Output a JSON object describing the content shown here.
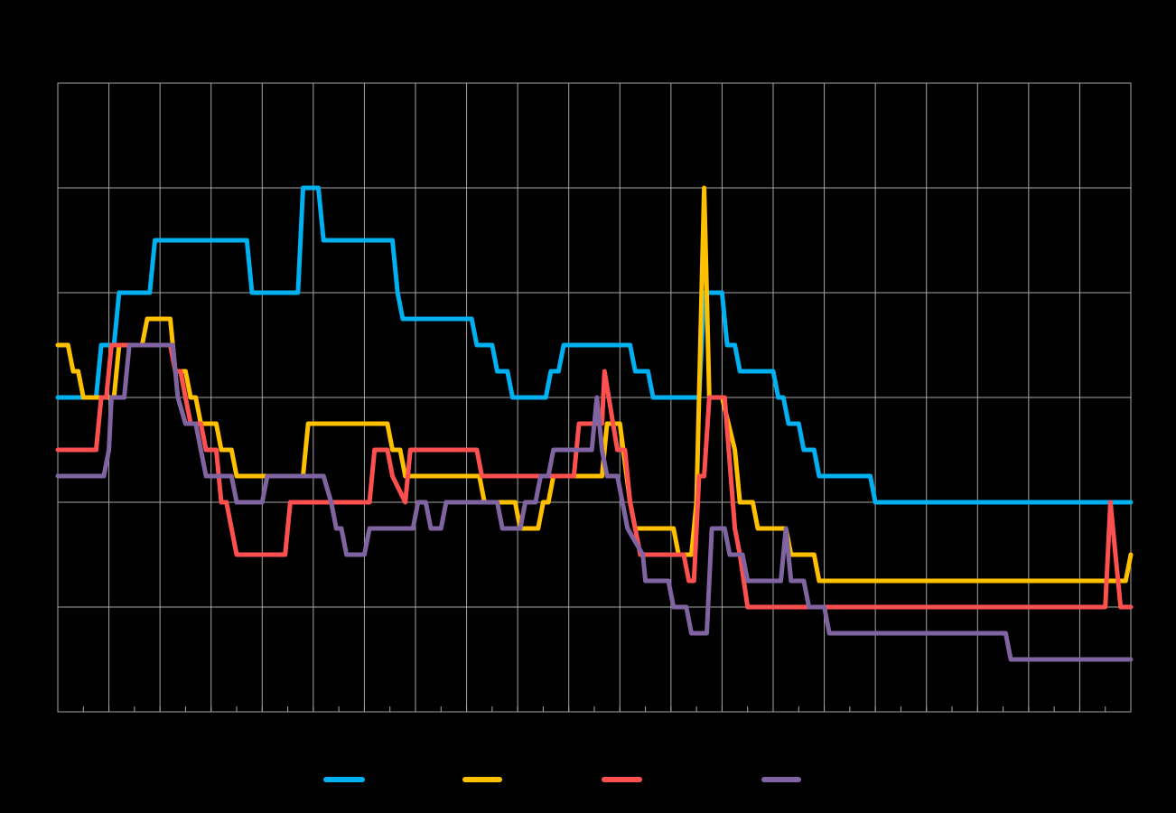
{
  "chart_data": {
    "type": "line",
    "background": "#000000",
    "gridline_color": "#a6a6a6",
    "grid": true,
    "legend_position": "bottom-center",
    "xlim": [
      0,
      420
    ],
    "ylim": [
      0,
      12
    ],
    "series": [
      {
        "color": "#00b0f0",
        "points": [
          [
            0,
            6
          ],
          [
            15,
            6
          ],
          [
            17,
            7
          ],
          [
            22,
            7
          ],
          [
            24,
            8
          ],
          [
            36,
            8
          ],
          [
            38,
            9
          ],
          [
            74,
            9
          ],
          [
            76,
            8
          ],
          [
            94,
            8
          ],
          [
            96,
            10
          ],
          [
            102,
            10
          ],
          [
            104,
            9
          ],
          [
            131,
            9
          ],
          [
            133,
            8
          ],
          [
            135,
            7.5
          ],
          [
            162,
            7.5
          ],
          [
            164,
            7
          ],
          [
            170,
            7
          ],
          [
            172,
            6.5
          ],
          [
            176,
            6.5
          ],
          [
            178,
            6
          ],
          [
            191,
            6
          ],
          [
            193,
            6.5
          ],
          [
            196,
            6.5
          ],
          [
            198,
            7
          ],
          [
            224,
            7
          ],
          [
            226,
            6.5
          ],
          [
            231,
            6.5
          ],
          [
            233,
            6
          ],
          [
            251,
            6
          ],
          [
            253,
            8
          ],
          [
            260,
            8
          ],
          [
            262,
            7
          ],
          [
            265,
            7
          ],
          [
            267,
            6.5
          ],
          [
            280,
            6.5
          ],
          [
            282,
            6
          ],
          [
            284,
            6
          ],
          [
            286,
            5.5
          ],
          [
            290,
            5.5
          ],
          [
            292,
            5
          ],
          [
            296,
            5
          ],
          [
            298,
            4.5
          ],
          [
            318,
            4.5
          ],
          [
            320,
            4
          ],
          [
            420,
            4
          ]
        ]
      },
      {
        "color": "#ffc000",
        "points": [
          [
            0,
            7
          ],
          [
            4,
            7
          ],
          [
            6,
            6.5
          ],
          [
            8,
            6.5
          ],
          [
            10,
            6
          ],
          [
            22,
            6
          ],
          [
            24,
            7
          ],
          [
            33,
            7
          ],
          [
            35,
            7.5
          ],
          [
            44,
            7.5
          ],
          [
            46,
            6.5
          ],
          [
            50,
            6.5
          ],
          [
            52,
            6
          ],
          [
            54,
            6
          ],
          [
            56,
            5.5
          ],
          [
            62,
            5.5
          ],
          [
            64,
            5
          ],
          [
            68,
            5
          ],
          [
            70,
            4.5
          ],
          [
            96,
            4.5
          ],
          [
            98,
            5.5
          ],
          [
            129,
            5.5
          ],
          [
            131,
            5
          ],
          [
            134,
            5
          ],
          [
            136,
            4.5
          ],
          [
            165,
            4.5
          ],
          [
            167,
            4
          ],
          [
            179,
            4
          ],
          [
            181,
            3.5
          ],
          [
            188,
            3.5
          ],
          [
            190,
            4
          ],
          [
            192,
            4
          ],
          [
            194,
            4.5
          ],
          [
            213,
            4.5
          ],
          [
            215,
            5.5
          ],
          [
            220,
            5.5
          ],
          [
            224,
            4
          ],
          [
            226,
            3.5
          ],
          [
            241,
            3.5
          ],
          [
            243,
            3
          ],
          [
            248,
            3
          ],
          [
            250,
            4
          ],
          [
            253,
            10
          ],
          [
            255,
            6
          ],
          [
            260,
            6
          ],
          [
            265,
            5
          ],
          [
            267,
            4
          ],
          [
            272,
            4
          ],
          [
            274,
            3.5
          ],
          [
            285,
            3.5
          ],
          [
            287,
            3
          ],
          [
            296,
            3
          ],
          [
            298,
            2.5
          ],
          [
            418,
            2.5
          ],
          [
            420,
            3
          ]
        ]
      },
      {
        "color": "#ff5050",
        "points": [
          [
            0,
            5
          ],
          [
            15,
            5
          ],
          [
            17,
            6
          ],
          [
            19,
            6
          ],
          [
            21,
            7
          ],
          [
            44,
            7
          ],
          [
            46,
            6.5
          ],
          [
            48,
            6.5
          ],
          [
            50,
            6
          ],
          [
            52,
            5.5
          ],
          [
            56,
            5.5
          ],
          [
            58,
            5
          ],
          [
            62,
            5
          ],
          [
            64,
            4
          ],
          [
            66,
            4
          ],
          [
            68,
            3.5
          ],
          [
            70,
            3
          ],
          [
            89,
            3
          ],
          [
            91,
            4
          ],
          [
            122,
            4
          ],
          [
            124,
            5
          ],
          [
            129,
            5
          ],
          [
            131,
            4.5
          ],
          [
            136,
            4
          ],
          [
            138,
            5
          ],
          [
            164,
            5
          ],
          [
            166,
            4.5
          ],
          [
            202,
            4.5
          ],
          [
            204,
            5.5
          ],
          [
            213,
            5.5
          ],
          [
            214,
            6.5
          ],
          [
            219,
            5
          ],
          [
            222,
            5
          ],
          [
            224,
            4
          ],
          [
            226,
            3.5
          ],
          [
            228,
            3
          ],
          [
            245,
            3
          ],
          [
            247,
            2.5
          ],
          [
            249,
            2.5
          ],
          [
            251,
            4.5
          ],
          [
            253,
            4.5
          ],
          [
            255,
            6
          ],
          [
            261,
            6
          ],
          [
            265,
            3.5
          ],
          [
            267,
            3
          ],
          [
            270,
            2
          ],
          [
            410,
            2
          ],
          [
            412,
            4
          ],
          [
            414,
            3
          ],
          [
            416,
            2
          ],
          [
            420,
            2
          ]
        ]
      },
      {
        "color": "#8064a2",
        "points": [
          [
            0,
            4.5
          ],
          [
            18,
            4.5
          ],
          [
            20,
            5
          ],
          [
            21,
            6
          ],
          [
            26,
            6
          ],
          [
            28,
            7
          ],
          [
            45,
            7
          ],
          [
            47,
            6
          ],
          [
            50,
            5.5
          ],
          [
            54,
            5.5
          ],
          [
            56,
            5
          ],
          [
            58,
            4.5
          ],
          [
            68,
            4.5
          ],
          [
            70,
            4
          ],
          [
            80,
            4
          ],
          [
            82,
            4.5
          ],
          [
            104,
            4.5
          ],
          [
            107,
            4
          ],
          [
            109,
            3.5
          ],
          [
            111,
            3.5
          ],
          [
            113,
            3
          ],
          [
            120,
            3
          ],
          [
            122,
            3.5
          ],
          [
            139,
            3.5
          ],
          [
            141,
            4
          ],
          [
            144,
            4
          ],
          [
            146,
            3.5
          ],
          [
            150,
            3.5
          ],
          [
            152,
            4
          ],
          [
            172,
            4
          ],
          [
            174,
            3.5
          ],
          [
            181,
            3.5
          ],
          [
            183,
            4
          ],
          [
            187,
            4
          ],
          [
            189,
            4.5
          ],
          [
            192,
            4.5
          ],
          [
            194,
            5
          ],
          [
            209,
            5
          ],
          [
            211,
            6
          ],
          [
            213,
            5
          ],
          [
            215,
            4.5
          ],
          [
            219,
            4.5
          ],
          [
            223,
            3.5
          ],
          [
            229,
            3
          ],
          [
            230,
            2.5
          ],
          [
            239,
            2.5
          ],
          [
            241,
            2
          ],
          [
            246,
            2
          ],
          [
            248,
            1.5
          ],
          [
            254,
            1.5
          ],
          [
            256,
            3.5
          ],
          [
            261,
            3.5
          ],
          [
            263,
            3
          ],
          [
            268,
            3
          ],
          [
            270,
            2.5
          ],
          [
            283,
            2.5
          ],
          [
            285,
            3.5
          ],
          [
            287,
            2.5
          ],
          [
            292,
            2.5
          ],
          [
            294,
            2
          ],
          [
            300,
            2
          ],
          [
            302,
            1.5
          ],
          [
            371,
            1.5
          ],
          [
            373,
            1
          ],
          [
            420,
            1
          ]
        ]
      }
    ]
  }
}
